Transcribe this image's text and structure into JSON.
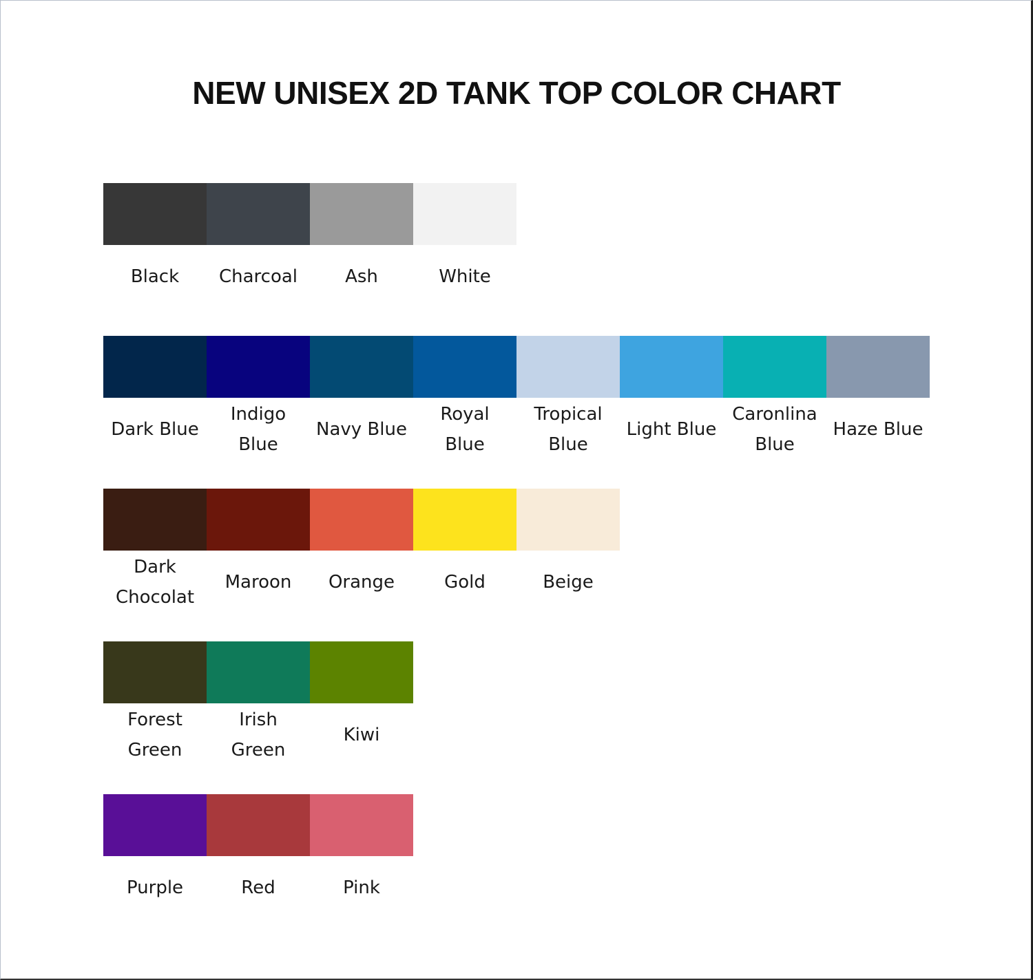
{
  "title": "NEW UNISEX 2D TANK TOP COLOR CHART",
  "rows": [
    [
      {
        "name": "Black",
        "color": "#373737"
      },
      {
        "name": "Charcoal",
        "color": "#3e444b"
      },
      {
        "name": "Ash",
        "color": "#9a9a9a"
      },
      {
        "name": "White",
        "color": "#f2f2f2"
      }
    ],
    [
      {
        "name": "Dark Blue",
        "color": "#02264b"
      },
      {
        "name": "Indigo Blue",
        "color": "#08037e"
      },
      {
        "name": "Navy Blue",
        "color": "#034a73"
      },
      {
        "name": "Royal Blue",
        "color": "#03589c"
      },
      {
        "name": "Tropical Blue",
        "color": "#c2d3e8"
      },
      {
        "name": "Light Blue",
        "color": "#3ea4e0"
      },
      {
        "name": "Caronlina Blue",
        "color": "#08b0b3"
      },
      {
        "name": "Haze Blue",
        "color": "#8898ae"
      }
    ],
    [
      {
        "name": "Dark Chocolat",
        "color": "#3a1d12"
      },
      {
        "name": "Maroon",
        "color": "#6b170b"
      },
      {
        "name": "Orange",
        "color": "#e05840"
      },
      {
        "name": "Gold",
        "color": "#fde31d"
      },
      {
        "name": "Beige",
        "color": "#f8ebd9"
      }
    ],
    [
      {
        "name": "Forest Green",
        "color": "#38381b"
      },
      {
        "name": "Irish Green",
        "color": "#0f7a59"
      },
      {
        "name": "Kiwi",
        "color": "#5c8300"
      }
    ],
    [
      {
        "name": "Purple",
        "color": "#590f97"
      },
      {
        "name": "Red",
        "color": "#a8393c"
      },
      {
        "name": "Pink",
        "color": "#d96070"
      }
    ]
  ]
}
